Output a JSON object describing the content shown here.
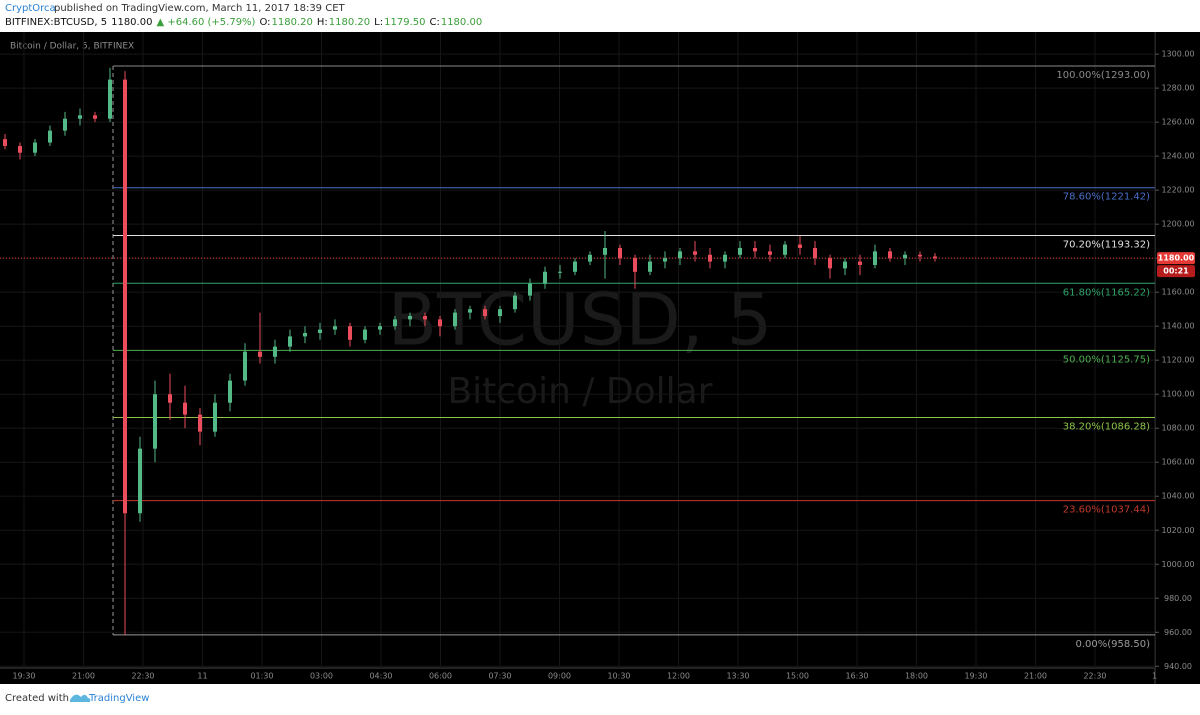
{
  "header": {
    "publisher": "CryptOrca",
    "published": "published on TradingView.com, March 11, 2017 18:39 CET",
    "symbol": "BITFINEX:BTCUSD, 5",
    "last": "1180.00",
    "change": "▲ +64.60 (+5.79%)",
    "ohlc": [
      {
        "k": "O:",
        "v": "1180.20"
      },
      {
        "k": "H:",
        "v": "1180.20"
      },
      {
        "k": "L:",
        "v": "1179.50"
      },
      {
        "k": "C:",
        "v": "1180.00"
      }
    ]
  },
  "footer": {
    "created": "Created with",
    "brand": "TradingView"
  },
  "chart_data": {
    "type": "candlestick",
    "title": "Bitcoin / Dollar, 5, BITFINEX",
    "watermark": "BTCUSD, 5",
    "watermark_sub": "Bitcoin / Dollar",
    "up_color": "#53b987",
    "down_color": "#eb4d5c",
    "categories": [
      "19:30",
      "21:00",
      "22:30",
      "11",
      "01:30",
      "03:00",
      "04:30",
      "06:00",
      "07:30",
      "09:00",
      "10:30",
      "12:00",
      "13:30",
      "15:00",
      "16:30",
      "18:00",
      "19:30",
      "21:00",
      "22:30",
      "1"
    ],
    "ylim": [
      939,
      1313
    ],
    "yticks": [
      {
        "value": 940,
        "label": "940.00"
      },
      {
        "value": 960,
        "label": "960.00"
      },
      {
        "value": 980,
        "label": "980.00"
      },
      {
        "value": 1000,
        "label": "1000.00"
      },
      {
        "value": 1020,
        "label": "1020.00"
      },
      {
        "value": 1040,
        "label": "1040.00"
      },
      {
        "value": 1060,
        "label": "1060.00"
      },
      {
        "value": 1080,
        "label": "1080.00"
      },
      {
        "value": 1100,
        "label": "1100.00"
      },
      {
        "value": 1120,
        "label": "1120.00"
      },
      {
        "value": 1140,
        "label": "1140.00"
      },
      {
        "value": 1160,
        "label": "1160.00"
      },
      {
        "value": 1180,
        "label": "1180.00"
      },
      {
        "value": 1200,
        "label": "1200.00"
      },
      {
        "value": 1220,
        "label": "1220.00"
      },
      {
        "value": 1240,
        "label": "1240.00"
      },
      {
        "value": 1260,
        "label": "1260.00"
      },
      {
        "value": 1280,
        "label": "1280.00"
      },
      {
        "value": 1300,
        "label": "1300.00"
      }
    ],
    "grid": true,
    "ohlc": [
      [
        1250,
        1253,
        1244,
        1246
      ],
      [
        1246,
        1248,
        1238,
        1242
      ],
      [
        1242,
        1250,
        1240,
        1248
      ],
      [
        1248,
        1258,
        1246,
        1255
      ],
      [
        1255,
        1266,
        1252,
        1262
      ],
      [
        1262,
        1268,
        1258,
        1264
      ],
      [
        1264,
        1266,
        1260,
        1262
      ],
      [
        1262,
        1292,
        1260,
        1285
      ],
      [
        1285,
        1290,
        958.5,
        1030
      ],
      [
        1030,
        1075,
        1025,
        1068
      ],
      [
        1068,
        1108,
        1060,
        1100
      ],
      [
        1100,
        1112,
        1085,
        1095
      ],
      [
        1095,
        1105,
        1080,
        1088
      ],
      [
        1088,
        1092,
        1070,
        1078
      ],
      [
        1078,
        1100,
        1075,
        1095
      ],
      [
        1095,
        1112,
        1090,
        1108
      ],
      [
        1108,
        1130,
        1105,
        1125
      ],
      [
        1125,
        1148,
        1118,
        1122
      ],
      [
        1122,
        1132,
        1118,
        1128
      ],
      [
        1128,
        1138,
        1125,
        1134
      ],
      [
        1134,
        1140,
        1130,
        1136
      ],
      [
        1136,
        1142,
        1132,
        1138
      ],
      [
        1138,
        1144,
        1135,
        1140
      ],
      [
        1140,
        1142,
        1128,
        1132
      ],
      [
        1132,
        1140,
        1130,
        1138
      ],
      [
        1138,
        1142,
        1135,
        1140
      ],
      [
        1140,
        1146,
        1138,
        1144
      ],
      [
        1144,
        1148,
        1140,
        1146
      ],
      [
        1146,
        1148,
        1140,
        1144
      ],
      [
        1144,
        1146,
        1134,
        1140
      ],
      [
        1140,
        1150,
        1138,
        1148
      ],
      [
        1148,
        1152,
        1144,
        1150
      ],
      [
        1150,
        1152,
        1144,
        1146
      ],
      [
        1146,
        1152,
        1142,
        1150
      ],
      [
        1150,
        1160,
        1148,
        1158
      ],
      [
        1158,
        1168,
        1155,
        1165
      ],
      [
        1165,
        1175,
        1162,
        1172
      ],
      [
        1172,
        1176,
        1168,
        1172
      ],
      [
        1172,
        1180,
        1170,
        1178
      ],
      [
        1178,
        1184,
        1176,
        1182
      ],
      [
        1182,
        1196,
        1168,
        1186
      ],
      [
        1186,
        1188,
        1176,
        1180
      ],
      [
        1180,
        1182,
        1162,
        1172
      ],
      [
        1172,
        1182,
        1170,
        1178
      ],
      [
        1178,
        1184,
        1174,
        1180
      ],
      [
        1180,
        1186,
        1176,
        1184
      ],
      [
        1184,
        1190,
        1178,
        1182
      ],
      [
        1182,
        1186,
        1174,
        1178
      ],
      [
        1178,
        1184,
        1174,
        1182
      ],
      [
        1182,
        1190,
        1180,
        1186
      ],
      [
        1186,
        1190,
        1180,
        1184
      ],
      [
        1184,
        1188,
        1178,
        1182
      ],
      [
        1182,
        1190,
        1180,
        1188
      ],
      [
        1188,
        1193,
        1182,
        1186
      ],
      [
        1186,
        1190,
        1176,
        1180
      ],
      [
        1180,
        1182,
        1168,
        1174
      ],
      [
        1174,
        1180,
        1170,
        1178
      ],
      [
        1178,
        1182,
        1170,
        1176
      ],
      [
        1176,
        1188,
        1174,
        1184
      ],
      [
        1184,
        1186,
        1178,
        1180
      ],
      [
        1180,
        1184,
        1176,
        1182
      ],
      [
        1182,
        1184,
        1178,
        1181
      ],
      [
        1181,
        1183,
        1178,
        1180
      ]
    ],
    "fib_levels": [
      {
        "value": 1293,
        "label": "100.00%(1293.00)",
        "color": "#8a8a8a"
      },
      {
        "value": 1221.42,
        "label": "78.60%(1221.42)",
        "color": "#4a6fc7"
      },
      {
        "value": 1193.32,
        "label": "70.20%(1193.32)",
        "color": "#e0e0e0"
      },
      {
        "value": 1165.22,
        "label": "61.80%(1165.22)",
        "color": "#2fa36b"
      },
      {
        "value": 1125.75,
        "label": "50.00%(1125.75)",
        "color": "#4caf50"
      },
      {
        "value": 1086.28,
        "label": "38.20%(1086.28)",
        "color": "#8bc34a"
      },
      {
        "value": 1037.44,
        "label": "23.60%(1037.44)",
        "color": "#c0392b"
      },
      {
        "value": 958.5,
        "label": "0.00%(958.50)",
        "color": "#9a9a9a"
      }
    ],
    "last_price": {
      "value": 1180,
      "label": "1180.00",
      "color": "#e53935"
    },
    "countdown": "00:21"
  }
}
